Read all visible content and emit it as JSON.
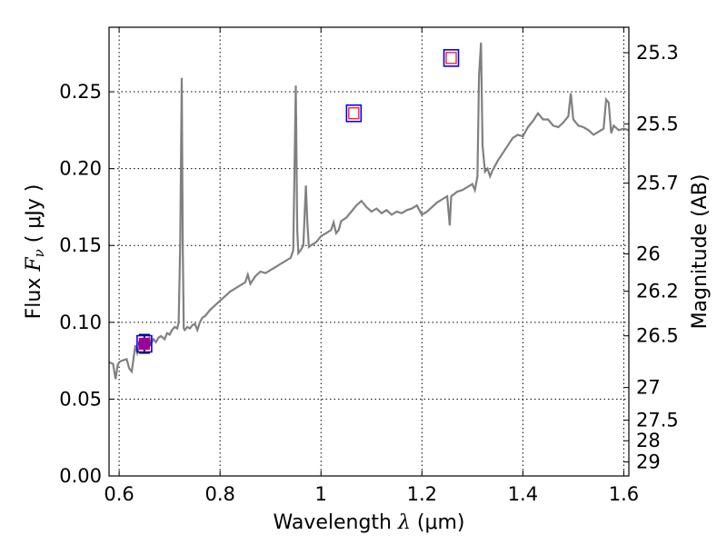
{
  "chart_data": {
    "type": "line",
    "title": "",
    "xlabel": "Wavelength  λ (μm)",
    "ylabel": "Flux  Fν  ( μJy )",
    "ylabel_parts": {
      "prefix": "Flux  ",
      "symbol": "F",
      "subscript": "ν",
      "suffix": "  ( μJy )"
    },
    "xlabel_parts": {
      "prefix": "Wavelength  ",
      "symbol": "λ",
      "suffix": " (μm)"
    },
    "y2label": "Magnitude (AB)",
    "xlim": [
      0.58,
      1.61
    ],
    "ylim": [
      0.0,
      0.292
    ],
    "grid": true,
    "x_ticks": [
      0.6,
      0.8,
      1.0,
      1.2,
      1.4,
      1.6
    ],
    "x_tick_labels": [
      "0.6",
      "0.8",
      "1",
      "1.2",
      "1.4",
      "1.6"
    ],
    "y_ticks": [
      0.0,
      0.05,
      0.1,
      0.15,
      0.2,
      0.25
    ],
    "y_tick_labels": [
      "0.00",
      "0.05",
      "0.10",
      "0.15",
      "0.20",
      "0.25"
    ],
    "magnitude_ticks": [
      {
        "label": "25.3",
        "value": 25.3
      },
      {
        "label": "25.5",
        "value": 25.5
      },
      {
        "label": "25.7",
        "value": 25.7
      },
      {
        "label": "26",
        "value": 26.0
      },
      {
        "label": "26.2",
        "value": 26.2
      },
      {
        "label": "26.5",
        "value": 26.5
      },
      {
        "label": "27",
        "value": 27.0
      },
      {
        "label": "27.5",
        "value": 27.5
      },
      {
        "label": "28",
        "value": 28.0
      },
      {
        "label": "29",
        "value": 29.0
      }
    ],
    "colors": {
      "spectrum": "#808080",
      "square_outer": "#0000ff",
      "square_inner": "#ff0000",
      "point_fill": "#990099",
      "errorbar": "#000000",
      "grid": "#000000"
    },
    "spectrum": {
      "x": [
        0.58,
        0.588,
        0.593,
        0.597,
        0.6,
        0.605,
        0.615,
        0.62,
        0.625,
        0.632,
        0.636,
        0.642,
        0.648,
        0.655,
        0.66,
        0.663,
        0.668,
        0.673,
        0.678,
        0.683,
        0.69,
        0.695,
        0.7,
        0.705,
        0.71,
        0.715,
        0.718,
        0.721,
        0.724,
        0.726,
        0.728,
        0.73,
        0.735,
        0.74,
        0.745,
        0.75,
        0.755,
        0.76,
        0.765,
        0.77,
        0.78,
        0.79,
        0.8,
        0.81,
        0.82,
        0.825,
        0.83,
        0.84,
        0.85,
        0.855,
        0.86,
        0.87,
        0.88,
        0.89,
        0.9,
        0.91,
        0.92,
        0.93,
        0.935,
        0.94,
        0.945,
        0.95,
        0.953,
        0.955,
        0.96,
        0.965,
        0.97,
        0.973,
        0.976,
        0.98,
        0.99,
        1.0,
        1.01,
        1.02,
        1.025,
        1.03,
        1.035,
        1.04,
        1.05,
        1.06,
        1.07,
        1.08,
        1.09,
        1.1,
        1.11,
        1.12,
        1.13,
        1.14,
        1.15,
        1.16,
        1.17,
        1.18,
        1.19,
        1.2,
        1.21,
        1.22,
        1.23,
        1.24,
        1.25,
        1.255,
        1.258,
        1.262,
        1.27,
        1.28,
        1.29,
        1.3,
        1.305,
        1.31,
        1.313,
        1.317,
        1.32,
        1.325,
        1.33,
        1.335,
        1.34,
        1.35,
        1.36,
        1.37,
        1.38,
        1.39,
        1.4,
        1.41,
        1.42,
        1.43,
        1.44,
        1.45,
        1.46,
        1.47,
        1.48,
        1.49,
        1.495,
        1.5,
        1.51,
        1.52,
        1.53,
        1.54,
        1.55,
        1.56,
        1.565,
        1.57,
        1.575,
        1.58,
        1.59,
        1.6,
        1.61
      ],
      "y": [
        0.074,
        0.073,
        0.063,
        0.072,
        0.074,
        0.075,
        0.076,
        0.07,
        0.068,
        0.085,
        0.08,
        0.086,
        0.083,
        0.089,
        0.09,
        0.086,
        0.089,
        0.087,
        0.09,
        0.091,
        0.089,
        0.093,
        0.092,
        0.095,
        0.097,
        0.096,
        0.1,
        0.15,
        0.259,
        0.15,
        0.096,
        0.095,
        0.097,
        0.096,
        0.098,
        0.099,
        0.095,
        0.1,
        0.103,
        0.104,
        0.108,
        0.111,
        0.114,
        0.117,
        0.12,
        0.121,
        0.122,
        0.124,
        0.126,
        0.131,
        0.125,
        0.13,
        0.133,
        0.132,
        0.134,
        0.136,
        0.138,
        0.14,
        0.141,
        0.142,
        0.147,
        0.254,
        0.16,
        0.145,
        0.147,
        0.15,
        0.189,
        0.165,
        0.149,
        0.15,
        0.152,
        0.156,
        0.158,
        0.16,
        0.165,
        0.158,
        0.16,
        0.166,
        0.168,
        0.172,
        0.176,
        0.179,
        0.175,
        0.172,
        0.174,
        0.171,
        0.173,
        0.17,
        0.172,
        0.171,
        0.173,
        0.174,
        0.176,
        0.17,
        0.172,
        0.175,
        0.178,
        0.18,
        0.182,
        0.163,
        0.182,
        0.183,
        0.185,
        0.186,
        0.188,
        0.19,
        0.186,
        0.195,
        0.26,
        0.282,
        0.215,
        0.198,
        0.2,
        0.195,
        0.199,
        0.205,
        0.21,
        0.215,
        0.22,
        0.222,
        0.221,
        0.227,
        0.231,
        0.236,
        0.232,
        0.232,
        0.228,
        0.227,
        0.23,
        0.234,
        0.249,
        0.232,
        0.228,
        0.227,
        0.225,
        0.222,
        0.224,
        0.226,
        0.245,
        0.243,
        0.223,
        0.228,
        0.225,
        0.226,
        0.225
      ]
    },
    "squares": [
      {
        "x": 0.65,
        "y": 0.086
      },
      {
        "x": 1.065,
        "y": 0.236
      },
      {
        "x": 1.258,
        "y": 0.272
      }
    ],
    "points": [
      {
        "x": 0.65,
        "y": 0.086,
        "yerr_low": 0.08,
        "yerr_high": 0.092
      }
    ]
  }
}
